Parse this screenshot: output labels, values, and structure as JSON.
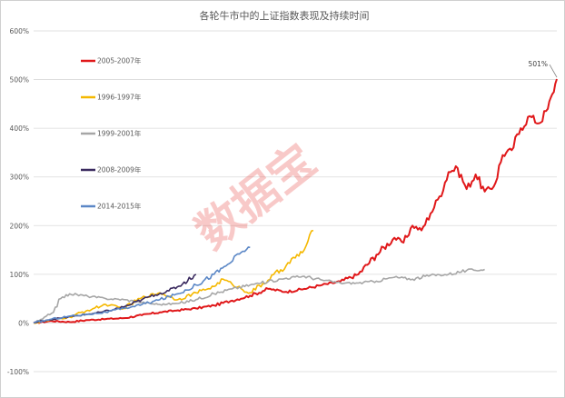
{
  "chart_data": {
    "type": "line",
    "title": "各轮牛市中的上证指数表现及持续时间",
    "xlabel": "",
    "ylabel": "",
    "ylim": [
      -100,
      600
    ],
    "yticks": [
      -100,
      0,
      100,
      200,
      300,
      400,
      500,
      600
    ],
    "ytick_labels": [
      "-100%",
      "0%",
      "100%",
      "200%",
      "300%",
      "400%",
      "500%",
      "600%"
    ],
    "grid": true,
    "legend_position": "left",
    "x_unit": "trading days",
    "xlim": [
      0,
      580
    ],
    "series": [
      {
        "name": "2005-2007年",
        "color": "#e0181a",
        "x": [
          0,
          20,
          40,
          60,
          80,
          100,
          120,
          140,
          160,
          180,
          200,
          220,
          240,
          260,
          280,
          300,
          320,
          340,
          360,
          380,
          400,
          410,
          420,
          430,
          440,
          450,
          460,
          470,
          480,
          490,
          500,
          510,
          520,
          530,
          540,
          550,
          560,
          570,
          575,
          580
        ],
        "values": [
          0,
          4,
          2,
          6,
          8,
          10,
          16,
          22,
          26,
          30,
          36,
          46,
          56,
          70,
          64,
          70,
          78,
          85,
          100,
          140,
          175,
          165,
          200,
          190,
          225,
          260,
          310,
          318,
          275,
          305,
          270,
          280,
          345,
          355,
          400,
          425,
          410,
          440,
          470,
          501
        ]
      },
      {
        "name": "1996-1997年",
        "color": "#f5b800",
        "x": [
          0,
          20,
          40,
          60,
          80,
          100,
          120,
          140,
          160,
          180,
          200,
          210,
          220,
          240,
          260,
          280,
          300,
          310
        ],
        "values": [
          0,
          6,
          12,
          26,
          38,
          30,
          52,
          62,
          48,
          62,
          75,
          90,
          80,
          62,
          88,
          118,
          150,
          190
        ]
      },
      {
        "name": "1999-2001年",
        "color": "#a6a6a6",
        "x": [
          0,
          10,
          20,
          30,
          40,
          60,
          80,
          100,
          120,
          140,
          160,
          180,
          200,
          220,
          240,
          260,
          280,
          300,
          320,
          340,
          360,
          380,
          400,
          420,
          440,
          460,
          480,
          500
        ],
        "values": [
          0,
          8,
          20,
          50,
          60,
          55,
          50,
          48,
          42,
          38,
          40,
          48,
          60,
          70,
          78,
          85,
          92,
          96,
          88,
          82,
          82,
          86,
          94,
          90,
          98,
          100,
          108,
          110
        ]
      },
      {
        "name": "2008-2009年",
        "color": "#3a2a5f",
        "x": [
          0,
          15,
          30,
          45,
          60,
          75,
          90,
          105,
          120,
          135,
          150,
          165,
          180
        ],
        "values": [
          0,
          6,
          10,
          14,
          18,
          22,
          28,
          36,
          48,
          58,
          66,
          80,
          100
        ]
      },
      {
        "name": "2014-2015年",
        "color": "#5b87c6",
        "x": [
          0,
          20,
          40,
          60,
          80,
          100,
          120,
          140,
          160,
          180,
          200,
          215,
          230,
          240
        ],
        "values": [
          0,
          8,
          14,
          18,
          22,
          30,
          38,
          48,
          60,
          78,
          100,
          120,
          145,
          155
        ]
      }
    ],
    "annotations": [
      {
        "text": "501%",
        "x": 580,
        "y": 501
      }
    ]
  },
  "watermark": {
    "text": "数据宝",
    "color": "#e8413d"
  }
}
